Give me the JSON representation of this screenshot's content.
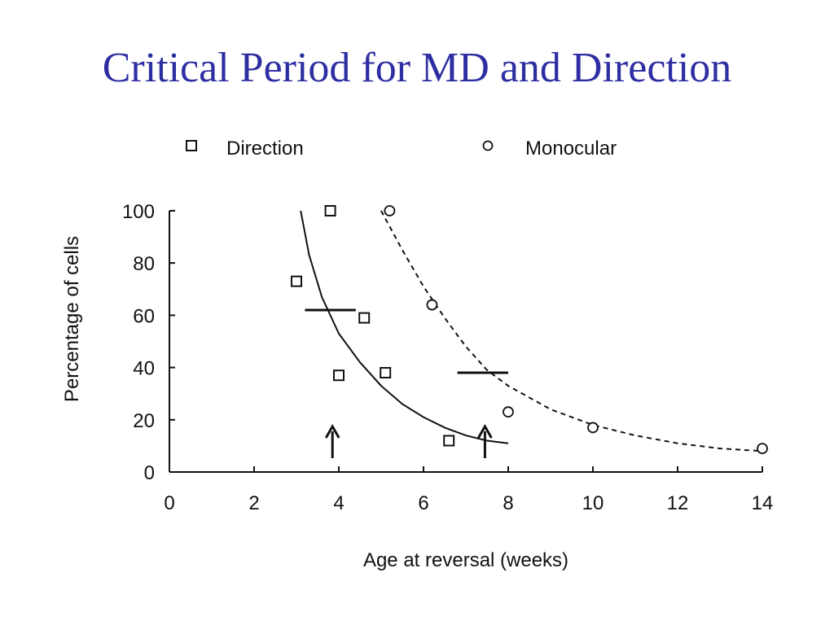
{
  "slide": {
    "title": "Critical Period for MD and Direction",
    "title_color": "#2e2ea3"
  },
  "chart_data": {
    "type": "scatter",
    "title": "",
    "xlabel": "Age at reversal (weeks)",
    "ylabel": "Percentage of cells",
    "xlim": [
      0,
      14
    ],
    "ylim": [
      0,
      100
    ],
    "x_ticks": [
      "0",
      "2",
      "4",
      "6",
      "8",
      "10",
      "12",
      "14"
    ],
    "y_ticks": [
      "0",
      "20",
      "40",
      "60",
      "80",
      "100"
    ],
    "legend_position": "top",
    "series": [
      {
        "name": "Direction",
        "marker": "square",
        "points": [
          {
            "x": 3.0,
            "y": 73
          },
          {
            "x": 3.8,
            "y": 100
          },
          {
            "x": 4.0,
            "y": 37
          },
          {
            "x": 4.6,
            "y": 59
          },
          {
            "x": 5.1,
            "y": 38
          },
          {
            "x": 6.6,
            "y": 12
          }
        ],
        "fit": {
          "style": "solid",
          "points": [
            [
              3.1,
              100
            ],
            [
              3.3,
              83
            ],
            [
              3.6,
              67
            ],
            [
              4.0,
              53
            ],
            [
              4.5,
              42
            ],
            [
              5.0,
              33
            ],
            [
              5.5,
              26
            ],
            [
              6.0,
              21
            ],
            [
              6.5,
              17
            ],
            [
              7.0,
              14
            ],
            [
              7.5,
              12
            ],
            [
              8.0,
              11
            ]
          ]
        },
        "half_marker": {
          "x_start": 3.2,
          "x_end": 4.4,
          "y": 62
        },
        "arrow_x": 3.85
      },
      {
        "name": "Monocular",
        "marker": "circle",
        "points": [
          {
            "x": 5.2,
            "y": 100
          },
          {
            "x": 6.2,
            "y": 64
          },
          {
            "x": 8.0,
            "y": 23
          },
          {
            "x": 10.0,
            "y": 17
          },
          {
            "x": 14.0,
            "y": 9
          }
        ],
        "fit": {
          "style": "dashed",
          "points": [
            [
              5.0,
              100
            ],
            [
              5.5,
              85
            ],
            [
              6.0,
              71
            ],
            [
              6.5,
              59
            ],
            [
              7.0,
              48
            ],
            [
              7.5,
              39
            ],
            [
              8.0,
              33
            ],
            [
              9.0,
              24
            ],
            [
              10.0,
              18
            ],
            [
              11.0,
              14
            ],
            [
              12.0,
              11
            ],
            [
              13.0,
              9
            ],
            [
              14.0,
              8
            ]
          ]
        },
        "half_marker": {
          "x_start": 6.8,
          "x_end": 8.0,
          "y": 38
        },
        "arrow_x": 7.45
      }
    ]
  }
}
